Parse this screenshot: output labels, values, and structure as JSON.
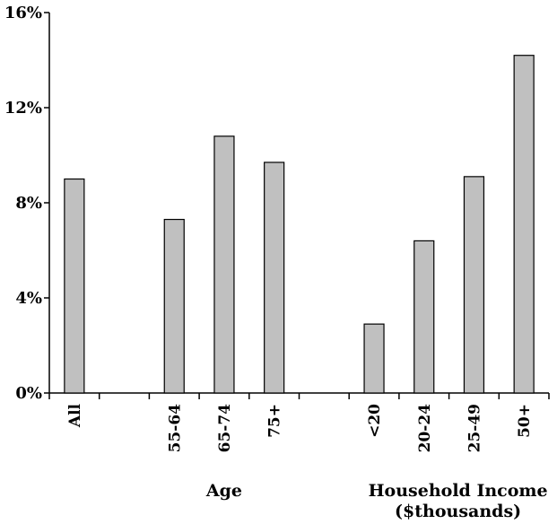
{
  "chart_data": {
    "type": "bar",
    "categories": [
      "All",
      "",
      "55-64",
      "65-74",
      "75+",
      "",
      "<20",
      "20-24",
      "25-49",
      "50+"
    ],
    "values": [
      9.0,
      null,
      7.3,
      10.8,
      9.7,
      null,
      2.9,
      6.4,
      9.1,
      14.2
    ],
    "y_ticks": [
      "0%",
      "4%",
      "8%",
      "12%",
      "16%"
    ],
    "ylim": [
      0,
      16
    ],
    "grid": false,
    "bar_color": "#c0c0c0",
    "bar_edge_color": "#000000",
    "groups": [
      {
        "label": "Age",
        "label_line2": ""
      },
      {
        "label": "Household Income",
        "label_line2": "($thousands)"
      }
    ]
  }
}
